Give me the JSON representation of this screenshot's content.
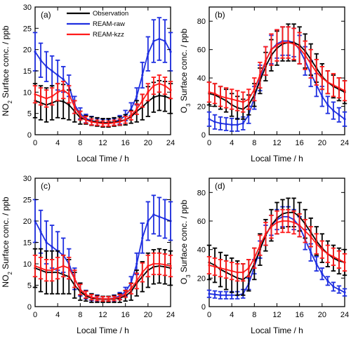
{
  "legend": [
    {
      "name": "Observation",
      "color": "#000000"
    },
    {
      "name": "REAM-raw",
      "color": "#1f2fe0"
    },
    {
      "name": "REAM-kzz",
      "color": "#ff1a1a"
    }
  ],
  "x_axis_label": "Local Time / h",
  "chart_data": [
    {
      "type": "line",
      "panel_label": "(a)",
      "ylabel": "NO2 Surface conc. / ppb",
      "ylabel_base": "NO",
      "ylabel_sub": "2",
      "ylabel_rest": " Surface conc. / ppb",
      "xlabel": "Local Time / h",
      "xlim": [
        0,
        24
      ],
      "ylim": [
        0,
        30
      ],
      "xticks": [
        0,
        4,
        8,
        12,
        16,
        20,
        24
      ],
      "yticks": [
        0,
        5,
        10,
        15,
        20,
        25,
        30
      ],
      "x": [
        0,
        1,
        2,
        3,
        4,
        5,
        6,
        7,
        8,
        9,
        10,
        11,
        12,
        13,
        14,
        15,
        16,
        17,
        18,
        19,
        20,
        21,
        22,
        23,
        24
      ],
      "series": [
        {
          "name": "Observation",
          "color": "#000000",
          "values": [
            8,
            7.5,
            7,
            7.5,
            8,
            7.8,
            7,
            5.5,
            4,
            3.5,
            3.2,
            3,
            2.8,
            2.8,
            3,
            3.2,
            3.5,
            4.2,
            5.5,
            6.5,
            7.8,
            8.8,
            9.2,
            9,
            8.5
          ],
          "errors": [
            4,
            4,
            4,
            4,
            4,
            4,
            3.5,
            2.5,
            1.5,
            1,
            1,
            1,
            1,
            1,
            1,
            1,
            1.2,
            1.5,
            2.5,
            3,
            3.5,
            3.5,
            3.5,
            3.5,
            3.5
          ]
        },
        {
          "name": "REAM-raw",
          "color": "#1f2fe0",
          "values": [
            19.5,
            17.5,
            16,
            15,
            14,
            13,
            11.5,
            7,
            5,
            3.8,
            3.3,
            3,
            2.8,
            2.8,
            3,
            3.5,
            4.5,
            6,
            9,
            14,
            19,
            22,
            22.5,
            22,
            19.5
          ],
          "errors": [
            4.5,
            4,
            3.5,
            3.5,
            3.5,
            3,
            2.5,
            2,
            1.3,
            1,
            1,
            0.8,
            0.8,
            0.8,
            0.8,
            1,
            1.2,
            1.5,
            2,
            3,
            4,
            5,
            5,
            5,
            4.5
          ]
        },
        {
          "name": "REAM-kzz",
          "color": "#ff1a1a",
          "values": [
            9.5,
            9,
            8.5,
            9,
            10,
            10.5,
            9.5,
            6.5,
            4.5,
            3.5,
            3,
            2.8,
            2.6,
            2.6,
            2.8,
            3,
            3.5,
            4.5,
            6,
            8,
            10,
            11.5,
            12,
            11.5,
            10.5
          ],
          "errors": [
            2,
            2,
            2,
            2,
            2,
            2,
            2,
            1.5,
            1,
            0.8,
            0.7,
            0.6,
            0.6,
            0.6,
            0.6,
            0.7,
            0.8,
            1,
            1.2,
            1.5,
            2,
            2,
            2,
            2,
            2
          ]
        }
      ]
    },
    {
      "type": "line",
      "panel_label": "(b)",
      "ylabel": "O3 Surface conc. / ppb",
      "ylabel_base": "O",
      "ylabel_sub": "3",
      "ylabel_rest": " Surface conc. / ppb",
      "xlabel": "Local Time / h",
      "xlim": [
        0,
        24
      ],
      "ylim": [
        0,
        90
      ],
      "xticks": [
        0,
        4,
        8,
        12,
        16,
        20,
        24
      ],
      "yticks": [
        0,
        20,
        40,
        60,
        80
      ],
      "x": [
        0,
        1,
        2,
        3,
        4,
        5,
        6,
        7,
        8,
        9,
        10,
        11,
        12,
        13,
        14,
        15,
        16,
        17,
        18,
        19,
        20,
        21,
        22,
        23,
        24
      ],
      "series": [
        {
          "name": "Observation",
          "color": "#000000",
          "values": [
            29,
            28,
            26,
            24,
            21,
            19,
            18,
            21,
            28,
            38,
            48,
            56,
            61,
            64,
            65,
            65,
            63,
            59,
            53,
            47,
            41,
            37,
            34,
            32,
            30
          ],
          "errors": [
            8,
            8,
            8,
            8,
            8,
            8,
            7,
            7,
            8,
            9,
            10,
            11,
            12,
            12,
            13,
            13,
            13,
            12,
            11,
            10,
            9,
            8,
            8,
            8,
            8
          ]
        },
        {
          "name": "REAM-raw",
          "color": "#1f2fe0",
          "values": [
            11,
            9,
            8,
            7.5,
            7,
            7,
            8,
            14,
            26,
            40,
            52,
            60,
            64,
            66,
            66,
            65,
            60,
            52,
            43,
            35,
            27,
            21,
            17,
            14,
            11
          ],
          "errors": [
            5,
            5,
            4.5,
            4.5,
            4.5,
            4.5,
            4.5,
            6,
            8,
            9,
            10,
            10,
            10,
            10,
            10,
            10,
            10,
            10,
            9,
            8,
            7,
            6,
            6,
            5,
            5
          ]
        },
        {
          "name": "REAM-kzz",
          "color": "#ff1a1a",
          "values": [
            30,
            29,
            27,
            26,
            25,
            24,
            23,
            25,
            32,
            42,
            52,
            60,
            63,
            65,
            65,
            64,
            61,
            56,
            50,
            44,
            40,
            37,
            35,
            33,
            31
          ],
          "errors": [
            7,
            7,
            7,
            7,
            7,
            7,
            7,
            7,
            8,
            9,
            10,
            11,
            11,
            11,
            11,
            11,
            11,
            10,
            10,
            9,
            8,
            8,
            8,
            7,
            7
          ]
        }
      ]
    },
    {
      "type": "line",
      "panel_label": "(c)",
      "ylabel": "NO2 Surface conc. / ppb",
      "ylabel_base": "NO",
      "ylabel_sub": "2",
      "ylabel_rest": " Surface conc. / ppb",
      "xlabel": "Local Time / h",
      "xlim": [
        0,
        24
      ],
      "ylim": [
        0,
        30
      ],
      "xticks": [
        0,
        4,
        8,
        12,
        16,
        20,
        24
      ],
      "yticks": [
        0,
        5,
        10,
        15,
        20,
        25,
        30
      ],
      "x": [
        0,
        1,
        2,
        3,
        4,
        5,
        6,
        7,
        8,
        9,
        10,
        11,
        12,
        13,
        14,
        15,
        16,
        17,
        18,
        19,
        20,
        21,
        22,
        23,
        24
      ],
      "series": [
        {
          "name": "Observation",
          "color": "#000000",
          "values": [
            9,
            8.5,
            8,
            8,
            8,
            7.5,
            7,
            5,
            3.5,
            2.5,
            2,
            1.8,
            1.7,
            1.7,
            1.8,
            2,
            2.5,
            3.5,
            5.5,
            7,
            8.5,
            9.3,
            9.5,
            9.3,
            9
          ],
          "errors": [
            4.5,
            5,
            5,
            5,
            5,
            4.5,
            4,
            3,
            2,
            1.2,
            1,
            0.8,
            0.7,
            0.7,
            0.8,
            1,
            1.2,
            2,
            3,
            3.5,
            4,
            4,
            4,
            4,
            4
          ]
        },
        {
          "name": "REAM-raw",
          "color": "#1f2fe0",
          "values": [
            20,
            17.5,
            15,
            14,
            13,
            12,
            10,
            6.5,
            4,
            2.8,
            2.2,
            2,
            1.8,
            1.8,
            2,
            2.5,
            3.5,
            5.5,
            10,
            16,
            20,
            21.5,
            21,
            20.5,
            20
          ],
          "errors": [
            5,
            5,
            5,
            5,
            4.5,
            4,
            3.5,
            2.5,
            1.5,
            1,
            0.8,
            0.7,
            0.6,
            0.6,
            0.7,
            0.8,
            1,
            1.5,
            2.5,
            3.5,
            4.5,
            4.5,
            4.5,
            4.5,
            4.5
          ]
        },
        {
          "name": "REAM-kzz",
          "color": "#ff1a1a",
          "values": [
            9.5,
            9,
            8.5,
            8.5,
            9,
            9.5,
            9,
            6.5,
            4,
            2.8,
            2.2,
            1.9,
            1.8,
            1.8,
            1.9,
            2.2,
            3,
            4.2,
            6,
            8,
            9.5,
            10,
            10,
            9.8,
            9.5
          ],
          "errors": [
            2.5,
            2.5,
            2.5,
            2.5,
            2.5,
            2.5,
            2.5,
            2,
            1.2,
            0.8,
            0.6,
            0.5,
            0.5,
            0.5,
            0.5,
            0.6,
            0.8,
            1.2,
            1.8,
            2.2,
            2.5,
            2.5,
            2.5,
            2.5,
            2.5
          ]
        }
      ]
    },
    {
      "type": "line",
      "panel_label": "(d)",
      "ylabel": "O3 Surface conc. / ppb",
      "ylabel_base": "O",
      "ylabel_sub": "3",
      "ylabel_rest": " Surface conc. / ppb",
      "xlabel": "Local Time / h",
      "xlim": [
        0,
        24
      ],
      "ylim": [
        0,
        90
      ],
      "xticks": [
        0,
        4,
        8,
        12,
        16,
        20,
        24
      ],
      "yticks": [
        0,
        20,
        40,
        60,
        80
      ],
      "x": [
        0,
        1,
        2,
        3,
        4,
        5,
        6,
        7,
        8,
        9,
        10,
        11,
        12,
        13,
        14,
        15,
        16,
        17,
        18,
        19,
        20,
        21,
        22,
        23,
        24
      ],
      "series": [
        {
          "name": "Observation",
          "color": "#000000",
          "values": [
            31,
            29,
            26,
            24,
            22,
            20,
            19,
            22,
            30,
            40,
            50,
            57,
            62,
            65,
            66,
            66,
            63,
            58,
            52,
            46,
            41,
            37,
            34,
            32,
            31
          ],
          "errors": [
            12,
            12,
            12,
            12,
            12,
            12,
            11,
            11,
            11,
            11,
            11,
            11,
            11,
            10,
            10,
            10,
            10,
            10,
            10,
            10,
            10,
            9,
            9,
            9,
            9
          ]
        },
        {
          "name": "REAM-raw",
          "color": "#1f2fe0",
          "values": [
            9,
            8.5,
            8,
            8,
            8,
            8,
            9,
            16,
            28,
            40,
            50,
            57,
            61,
            63,
            63,
            61,
            56,
            47,
            38,
            30,
            23,
            18,
            14,
            12,
            10
          ],
          "errors": [
            2.5,
            2.5,
            2.5,
            2.5,
            2.5,
            2.5,
            3,
            4,
            5,
            6,
            7,
            7,
            7,
            7,
            7,
            7,
            7,
            7,
            6,
            5,
            4,
            3,
            3,
            2.5,
            2.5
          ]
        },
        {
          "name": "REAM-kzz",
          "color": "#ff1a1a",
          "values": [
            29,
            28,
            27,
            26,
            25,
            24,
            24,
            27,
            34,
            43,
            51,
            56,
            59,
            60,
            60,
            59,
            57,
            53,
            49,
            44,
            40,
            37,
            35,
            33,
            31
          ],
          "errors": [
            6,
            6,
            6,
            6,
            6,
            6,
            6,
            6,
            7,
            7,
            8,
            8,
            8,
            8,
            8,
            8,
            8,
            8,
            7,
            7,
            6,
            6,
            6,
            6,
            6
          ]
        }
      ]
    }
  ]
}
